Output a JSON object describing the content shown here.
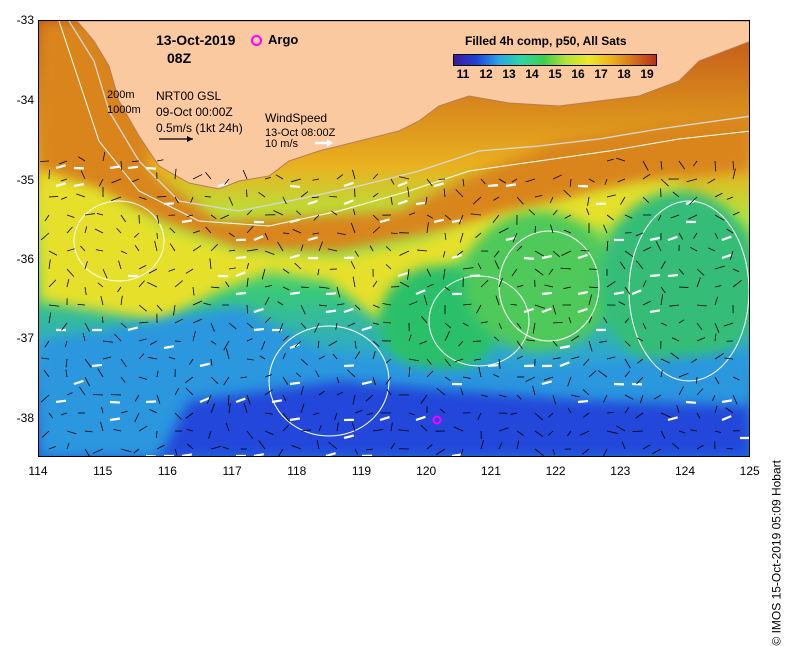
{
  "header": {
    "date": "13-Oct-2019",
    "hour": "08Z",
    "argo_label": "Argo",
    "composite_title": "Filled 4h comp, p50, All Sats",
    "colorbar_ticks": [
      "11",
      "12",
      "13",
      "14",
      "15",
      "16",
      "17",
      "18",
      "19"
    ]
  },
  "legend": {
    "depth_200": "200m",
    "depth_1000": "1000m",
    "current_source": "NRT00 GSL",
    "current_time": "09-Oct 00:00Z",
    "current_scale": "0.5m/s (1kt 24h)",
    "wind_title": "WindSpeed",
    "wind_time": "13-Oct 08:00Z",
    "wind_scale": "10 m/s"
  },
  "axes": {
    "x_ticks": [
      "114",
      "115",
      "116",
      "117",
      "118",
      "119",
      "120",
      "121",
      "122",
      "123",
      "124",
      "125"
    ],
    "y_ticks": [
      "-33",
      "-34",
      "-35",
      "-36",
      "-37",
      "-38"
    ]
  },
  "credit": "© IMOS 15-Oct-2019 05:09 Hobart",
  "colors": {
    "land": "#fbc9a0",
    "sst_11": "#1a2fd6",
    "sst_14": "#2fd4a6",
    "sst_16": "#e9ef2a",
    "sst_19": "#b73a12",
    "argo": "#ff00ff"
  },
  "argo_float": {
    "lon": 120.15,
    "lat": -38.0
  }
}
